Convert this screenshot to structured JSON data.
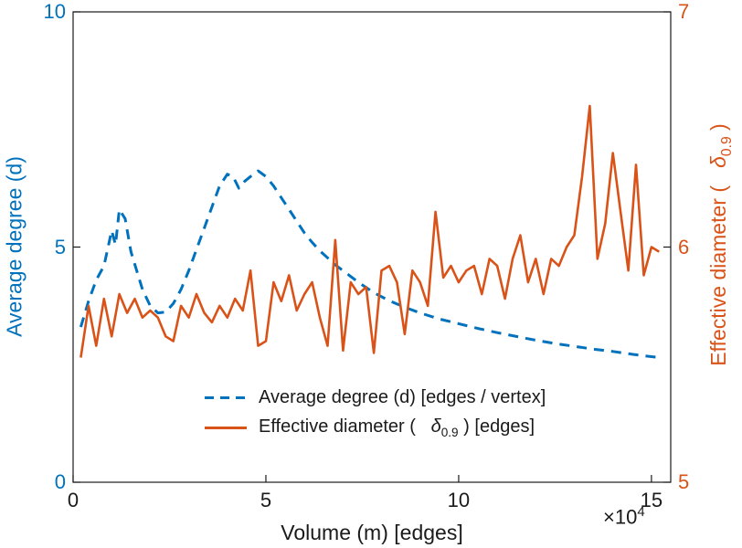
{
  "figure": {
    "background": "#ffffff",
    "axes_color": "#1a1a1a",
    "labels": {
      "left": "Average degree (d)",
      "right_prefix": "Effective diameter (   ",
      "right_delta": "δ",
      "right_sub": "0.9",
      "right_suffix": " )",
      "x": "Volume (m) [edges]",
      "multiplier_base": "×10",
      "multiplier_exp": "4"
    },
    "legend": {
      "items": [
        {
          "label": "Average degree (d) [edges / vertex]",
          "style": "dashed",
          "color": "#0072BD"
        },
        {
          "label_prefix": "Effective diameter (   ",
          "delta": "δ",
          "sub": "0.9",
          "suffix": " ) [edges]",
          "style": "solid",
          "color": "#D95319"
        }
      ]
    }
  },
  "chart_data": {
    "type": "line",
    "title": "",
    "xlabel": "Volume (m) [edges]",
    "x_scale_multiplier": "×10^4",
    "grid": false,
    "legend_position": "south-inside",
    "x": {
      "lim": [
        0,
        15.5
      ],
      "ticks": [
        0,
        5,
        10,
        15
      ],
      "tick_labels": [
        "0",
        "5",
        "10",
        "15"
      ]
    },
    "left": {
      "label": "Average degree (d)",
      "lim": [
        0,
        10
      ],
      "ticks": [
        0,
        5,
        10
      ],
      "tick_labels": [
        "0",
        "5",
        "10"
      ],
      "color": "#0072BD"
    },
    "right": {
      "label": "Effective diameter ( δ_0.9 )",
      "lim": [
        5,
        7
      ],
      "ticks": [
        5,
        6,
        7
      ],
      "tick_labels": [
        "5",
        "6",
        "7"
      ],
      "color": "#D95319"
    },
    "series": [
      {
        "name": "Average degree (d) [edges / vertex]",
        "axis": "left",
        "color": "#0072BD",
        "line_style": "dashed",
        "line_width": 3,
        "x": [
          0.2,
          0.4,
          0.6,
          0.8,
          1.0,
          1.1,
          1.2,
          1.35,
          1.5,
          1.65,
          1.8,
          2.0,
          2.2,
          2.4,
          2.6,
          2.8,
          3.0,
          3.2,
          3.4,
          3.6,
          3.8,
          4.0,
          4.15,
          4.3,
          4.45,
          4.6,
          4.8,
          5.0,
          5.2,
          5.4,
          5.6,
          5.8,
          6.0,
          6.2,
          6.4,
          6.6,
          6.8,
          7.0,
          7.4,
          7.8,
          8.2,
          8.6,
          9.0,
          9.5,
          10.0,
          10.5,
          11.0,
          11.5,
          12.0,
          12.5,
          13.0,
          13.5,
          14.0,
          14.5,
          15.0,
          15.2
        ],
        "y": [
          3.3,
          3.85,
          4.3,
          4.6,
          5.35,
          5.05,
          5.8,
          5.6,
          4.9,
          4.5,
          4.1,
          3.75,
          3.6,
          3.62,
          3.8,
          4.1,
          4.5,
          4.95,
          5.4,
          5.85,
          6.3,
          6.55,
          6.5,
          6.25,
          6.4,
          6.5,
          6.62,
          6.5,
          6.3,
          6.05,
          5.8,
          5.55,
          5.3,
          5.1,
          4.92,
          4.77,
          4.62,
          4.5,
          4.25,
          4.03,
          3.86,
          3.72,
          3.6,
          3.47,
          3.37,
          3.27,
          3.18,
          3.1,
          3.02,
          2.95,
          2.89,
          2.83,
          2.78,
          2.72,
          2.67,
          2.65
        ]
      },
      {
        "name": "Effective diameter ( δ_0.9 ) [edges]",
        "axis": "right",
        "color": "#D95319",
        "line_style": "solid",
        "line_width": 2.6,
        "x": [
          0.2,
          0.4,
          0.6,
          0.8,
          1.0,
          1.2,
          1.4,
          1.6,
          1.8,
          2.0,
          2.2,
          2.4,
          2.6,
          2.8,
          3.0,
          3.2,
          3.4,
          3.6,
          3.8,
          4.0,
          4.2,
          4.4,
          4.6,
          4.8,
          5.0,
          5.2,
          5.4,
          5.6,
          5.8,
          6.0,
          6.2,
          6.4,
          6.6,
          6.8,
          7.0,
          7.2,
          7.4,
          7.6,
          7.8,
          8.0,
          8.2,
          8.4,
          8.6,
          8.8,
          9.0,
          9.2,
          9.4,
          9.6,
          9.8,
          10.0,
          10.2,
          10.4,
          10.6,
          10.8,
          11.0,
          11.2,
          11.4,
          11.6,
          11.8,
          12.0,
          12.2,
          12.4,
          12.6,
          12.8,
          13.0,
          13.2,
          13.4,
          13.6,
          13.8,
          14.0,
          14.2,
          14.4,
          14.6,
          14.8,
          15.0,
          15.2
        ],
        "y": [
          5.53,
          5.75,
          5.58,
          5.78,
          5.62,
          5.8,
          5.72,
          5.78,
          5.7,
          5.73,
          5.7,
          5.62,
          5.6,
          5.75,
          5.7,
          5.8,
          5.72,
          5.68,
          5.75,
          5.7,
          5.78,
          5.73,
          5.9,
          5.58,
          5.6,
          5.85,
          5.77,
          5.88,
          5.73,
          5.8,
          5.85,
          5.7,
          5.58,
          6.03,
          5.56,
          5.85,
          5.8,
          5.83,
          5.55,
          5.9,
          5.92,
          5.85,
          5.63,
          5.9,
          5.85,
          5.75,
          6.15,
          5.87,
          5.92,
          5.85,
          5.9,
          5.92,
          5.8,
          5.95,
          5.92,
          5.78,
          5.95,
          6.05,
          5.85,
          5.95,
          5.8,
          5.95,
          5.92,
          6.0,
          6.05,
          6.3,
          6.6,
          5.95,
          6.1,
          6.4,
          6.15,
          5.9,
          6.35,
          5.88,
          6.0,
          5.98
        ]
      }
    ]
  }
}
